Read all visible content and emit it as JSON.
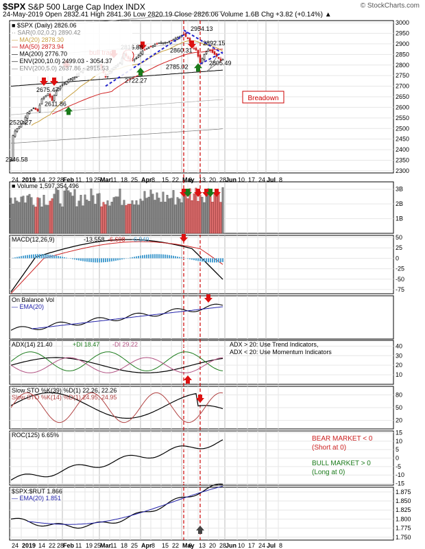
{
  "header": {
    "symbol": "$SPX",
    "name": "S&P 500 Large Cap Index",
    "exchange": "INDX",
    "brand": "© StockCharts.com",
    "quote_line": "24-May-2019   Open 2832.41  High 2841.36  Low 2820.19  Close 2826.06  Volume 1.6B  Chg +3.82 (+0.14%) ▲"
  },
  "price_panel": {
    "legend": [
      {
        "text": "■ $SPX (Daily) 2826.06",
        "color": "#000000"
      },
      {
        "text": "·· SAR(0.02,0.2) 2890.42",
        "color": "#888888"
      },
      {
        "text": "— MA(20) 2878.30",
        "color": "#c8a040"
      },
      {
        "text": "— MA(50) 2873.94",
        "color": "#d02020"
      },
      {
        "text": "— MA(200) 2776.70",
        "color": "#000000"
      },
      {
        "text": "— ENV(200,10.0) 2499.03 - 3054.37",
        "color": "#000000"
      },
      {
        "text": "— ENV(200,5.0) 2637.86 - 2915.53",
        "color": "#888888"
      }
    ],
    "annotations": {
      "bull_trap": "bull trap",
      "breadown": "Breadown"
    },
    "price_labels": [
      "2346.58",
      "2520.27",
      "2675.47",
      "2611.86",
      "2816.88",
      "2722.27",
      "2860.31",
      "2785.02",
      "2954.13",
      "2892.15",
      "2805.49"
    ],
    "y_ticks": [
      "3000",
      "2950",
      "2900",
      "2850",
      "2800",
      "2750",
      "2700",
      "2650",
      "2600",
      "2550",
      "2500",
      "2450",
      "2400",
      "2350",
      "2300"
    ]
  },
  "x_axis": {
    "labels": [
      "24",
      "2019",
      "14",
      "22",
      "28",
      "Feb",
      "11",
      "19",
      "25",
      "Mar",
      "11",
      "18",
      "25",
      "Apr",
      "8",
      "15",
      "22",
      "May",
      "6",
      "13",
      "20",
      "28",
      "Jun",
      "10",
      "17",
      "24",
      "Jul",
      "8"
    ]
  },
  "volume_panel": {
    "legend": "■ Volume 1,597,354,496",
    "y_ticks": [
      "3B",
      "2B",
      "1B"
    ]
  },
  "macd_panel": {
    "legend_title": "MACD(12,26,9)",
    "v1": "-13.558",
    "v2": "-6.608",
    "v3": "-6.949",
    "y_ticks": [
      "50",
      "25",
      "0",
      "-25",
      "-50",
      "-75"
    ]
  },
  "obv_panel": {
    "legend1": "On Balance Vol",
    "legend2": "— EMA(20)"
  },
  "adx_panel": {
    "legend_title": "ADX(14) 21.40",
    "plus_di": "+DI 18.47",
    "minus_di": "-DI 29.22",
    "note": "ADX > 20: Use Trend Indicators, ADX < 20: Use Momentum Indicators",
    "y_ticks": [
      "40",
      "30",
      "20",
      "10"
    ]
  },
  "sto_panel": {
    "legend1": "Slow STO %K(39) %D(1) 22.26, 22.26",
    "legend2": "Slow STO %K(14) %D(1) 24.95, 24.95",
    "y_ticks": [
      "80",
      "50",
      "20"
    ]
  },
  "roc_panel": {
    "legend": "ROC(125) 6.65%",
    "bear": "BEAR MARKET < 0",
    "bear_sub": "(Short at 0)",
    "bull": "BULL MARKET > 0",
    "bull_sub": "(Long at 0)",
    "y_ticks": [
      "15",
      "10",
      "5",
      "0",
      "-5",
      "-10",
      "-15"
    ]
  },
  "ratio_panel": {
    "legend1": "$SPX:$RUT 1.866",
    "legend2": "— EMA(20) 1.851",
    "y_ticks": [
      "1.875",
      "1.850",
      "1.825",
      "1.800",
      "1.775",
      "1.750"
    ]
  },
  "colors": {
    "up": "#000000",
    "down": "#cc2020",
    "arrow_red": "#dd1111",
    "arrow_green": "#1a7a1a",
    "trend_blue": "#2222cc"
  },
  "chart_data": [
    {
      "type": "line",
      "title": "$SPX (Daily)",
      "x": [
        "2018-12-24",
        "2019-01-14",
        "2019-02-01",
        "2019-02-25",
        "2019-03-08",
        "2019-03-21",
        "2019-04-01",
        "2019-04-30",
        "2019-05-13",
        "2019-05-24"
      ],
      "series": [
        {
          "name": "$SPX (Daily)",
          "values": [
            2351,
            2582,
            2706,
            2796,
            2743,
            2854,
            2867,
            2945,
            2811,
            2826
          ]
        }
      ],
      "ylim": [
        2300,
        3000
      ]
    },
    {
      "type": "bar",
      "title": "Volume",
      "series": [
        {
          "name": "Volume",
          "values": [
            1.6
          ]
        }
      ],
      "ylim": [
        0,
        3.5
      ]
    }
  ]
}
